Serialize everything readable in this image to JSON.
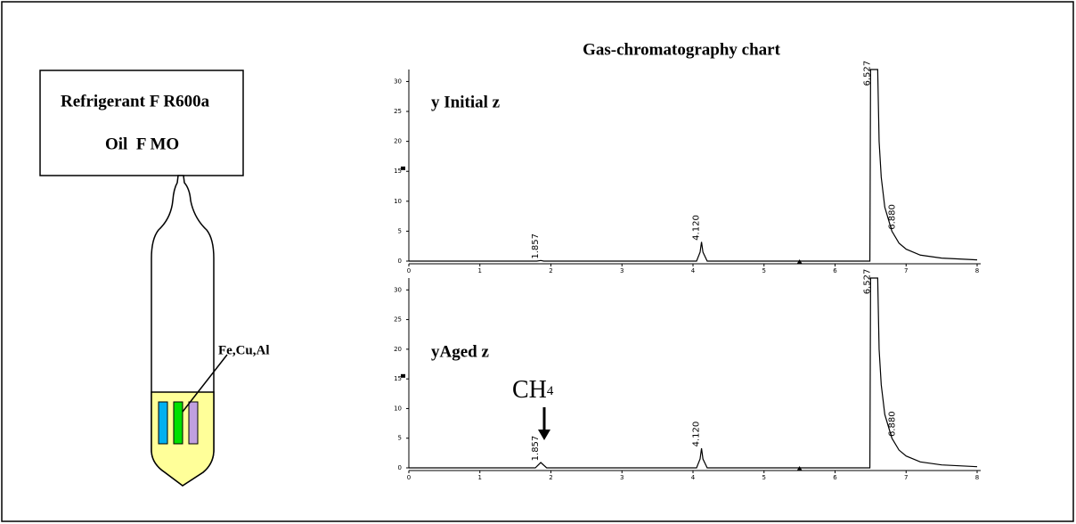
{
  "diagram": {
    "refrigerant": "Refrigerant F R600a",
    "oil": "Oil  F MO",
    "metals": "Fe,Cu,Al"
  },
  "title": "Gas-chromatography chart",
  "annotation": {
    "text": "CH",
    "subscript": "4"
  },
  "chart_data": [
    {
      "type": "line",
      "label": "y Initial z",
      "x": [
        0,
        1.8,
        1.857,
        1.9,
        4.05,
        4.1,
        4.12,
        4.14,
        4.2,
        6.49,
        6.5,
        6.527,
        6.6,
        6.62,
        6.65,
        6.7,
        6.8,
        6.9,
        7.0,
        7.2,
        7.5,
        8.0
      ],
      "values": [
        0,
        0,
        0.1,
        0,
        0,
        1.5,
        3.2,
        1.5,
        0,
        0,
        32,
        32,
        32,
        20,
        14,
        9,
        5,
        3,
        2,
        1,
        0.5,
        0.2
      ],
      "color": "#000000",
      "xlim": [
        0,
        8.05
      ],
      "ylim": [
        0,
        32
      ],
      "xticks": [
        0,
        1,
        2,
        3,
        4,
        5,
        6,
        7,
        8
      ],
      "yticks": [
        0,
        5,
        10,
        15,
        20,
        25,
        30
      ],
      "peak_labels": [
        1.857,
        {
          "value": 4.12,
          "label": "4.120"
        },
        6.527,
        {
          "value": 6.88,
          "label": "6.880"
        }
      ]
    },
    {
      "type": "line",
      "label": "yAged z",
      "x": [
        0,
        1.78,
        1.857,
        1.94,
        4.05,
        4.1,
        4.12,
        4.14,
        4.2,
        6.49,
        6.5,
        6.527,
        6.6,
        6.62,
        6.65,
        6.7,
        6.8,
        6.9,
        7.0,
        7.2,
        7.5,
        8.0
      ],
      "values": [
        0,
        0,
        0.9,
        0,
        0,
        1.5,
        3.3,
        1.5,
        0,
        0,
        32,
        32,
        32,
        20,
        14,
        9,
        5,
        3,
        2,
        1,
        0.5,
        0.2
      ],
      "color": "#000000",
      "xlim": [
        0,
        8.05
      ],
      "ylim": [
        0,
        32
      ],
      "xticks": [
        0,
        1,
        2,
        3,
        4,
        5,
        6,
        7,
        8
      ],
      "yticks": [
        0,
        5,
        10,
        15,
        20,
        25,
        30
      ],
      "peak_labels": [
        1.857,
        {
          "value": 4.12,
          "label": "4.120"
        },
        6.527,
        {
          "value": 6.88,
          "label": "6.880"
        }
      ]
    }
  ]
}
